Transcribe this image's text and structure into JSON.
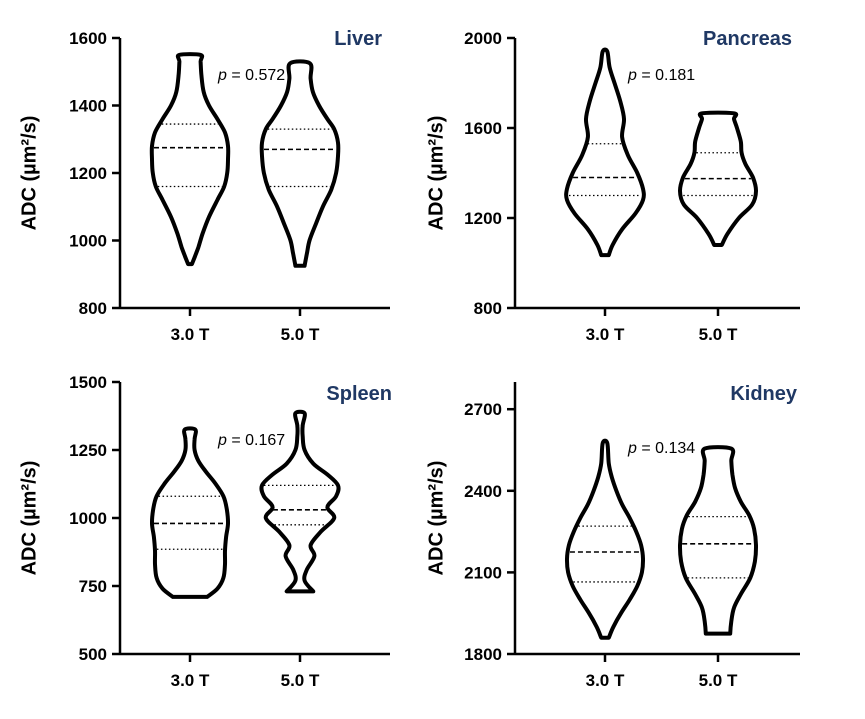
{
  "colors": {
    "title": "#1f3864",
    "ink": "#000000"
  },
  "chart_data": [
    {
      "type": "violin",
      "title": "Liver",
      "ylabel": "ADC (µm²/s)",
      "ylim": [
        800,
        1600
      ],
      "yticks": [
        800,
        1000,
        1200,
        1400,
        1600
      ],
      "categories": [
        "3.0 T",
        "5.0 T"
      ],
      "annotation": {
        "prefix": "p",
        "text": " = 0.572"
      },
      "series": [
        {
          "name": "3.0 T",
          "min": 930,
          "max": 1550,
          "q1": 1160,
          "median": 1275,
          "q3": 1345,
          "profile": [
            [
              930,
              0.05
            ],
            [
              950,
              0.12
            ],
            [
              980,
              0.22
            ],
            [
              1020,
              0.33
            ],
            [
              1070,
              0.5
            ],
            [
              1120,
              0.72
            ],
            [
              1160,
              0.9
            ],
            [
              1200,
              0.98
            ],
            [
              1240,
              1.0
            ],
            [
              1280,
              1.0
            ],
            [
              1320,
              0.92
            ],
            [
              1360,
              0.72
            ],
            [
              1400,
              0.5
            ],
            [
              1440,
              0.36
            ],
            [
              1490,
              0.3
            ],
            [
              1530,
              0.28
            ],
            [
              1550,
              0.28
            ]
          ]
        },
        {
          "name": "5.0 T",
          "min": 925,
          "max": 1525,
          "q1": 1160,
          "median": 1270,
          "q3": 1330,
          "profile": [
            [
              925,
              0.12
            ],
            [
              960,
              0.18
            ],
            [
              1000,
              0.25
            ],
            [
              1050,
              0.42
            ],
            [
              1100,
              0.6
            ],
            [
              1150,
              0.82
            ],
            [
              1200,
              0.95
            ],
            [
              1250,
              1.0
            ],
            [
              1290,
              1.0
            ],
            [
              1330,
              0.9
            ],
            [
              1360,
              0.72
            ],
            [
              1400,
              0.5
            ],
            [
              1440,
              0.34
            ],
            [
              1480,
              0.28
            ],
            [
              1525,
              0.26
            ]
          ]
        }
      ]
    },
    {
      "type": "violin",
      "title": "Pancreas",
      "ylabel": "ADC (µm²/s)",
      "ylim": [
        800,
        2000
      ],
      "yticks": [
        800,
        1200,
        1600,
        2000
      ],
      "categories": [
        "3.0 T",
        "5.0 T"
      ],
      "annotation": {
        "prefix": "p",
        "text": " = 0.181"
      },
      "series": [
        {
          "name": "3.0 T",
          "min": 1035,
          "max": 1940,
          "q1": 1300,
          "median": 1380,
          "q3": 1530,
          "profile": [
            [
              1035,
              0.1
            ],
            [
              1080,
              0.2
            ],
            [
              1150,
              0.45
            ],
            [
              1220,
              0.8
            ],
            [
              1280,
              1.0
            ],
            [
              1330,
              1.0
            ],
            [
              1400,
              0.85
            ],
            [
              1480,
              0.6
            ],
            [
              1560,
              0.45
            ],
            [
              1640,
              0.5
            ],
            [
              1720,
              0.4
            ],
            [
              1800,
              0.25
            ],
            [
              1870,
              0.12
            ],
            [
              1940,
              0.06
            ]
          ]
        },
        {
          "name": "5.0 T",
          "min": 1080,
          "max": 1665,
          "q1": 1300,
          "median": 1375,
          "q3": 1490,
          "profile": [
            [
              1080,
              0.1
            ],
            [
              1130,
              0.25
            ],
            [
              1200,
              0.55
            ],
            [
              1260,
              0.9
            ],
            [
              1320,
              1.0
            ],
            [
              1380,
              0.92
            ],
            [
              1440,
              0.72
            ],
            [
              1490,
              0.62
            ],
            [
              1540,
              0.6
            ],
            [
              1600,
              0.5
            ],
            [
              1640,
              0.42
            ],
            [
              1665,
              0.42
            ]
          ]
        }
      ]
    },
    {
      "type": "violin",
      "title": "Spleen",
      "ylabel": "ADC (µm²/s)",
      "ylim": [
        500,
        1500
      ],
      "yticks": [
        500,
        750,
        1000,
        1250,
        1500
      ],
      "categories": [
        "3.0 T",
        "5.0 T"
      ],
      "annotation": {
        "prefix": "p",
        "text": " = 0.167"
      },
      "series": [
        {
          "name": "3.0 T",
          "min": 710,
          "max": 1325,
          "q1": 885,
          "median": 980,
          "q3": 1080,
          "profile": [
            [
              710,
              0.45
            ],
            [
              740,
              0.72
            ],
            [
              780,
              0.88
            ],
            [
              830,
              0.92
            ],
            [
              880,
              0.92
            ],
            [
              930,
              0.95
            ],
            [
              980,
              1.0
            ],
            [
              1030,
              0.97
            ],
            [
              1080,
              0.88
            ],
            [
              1130,
              0.65
            ],
            [
              1170,
              0.42
            ],
            [
              1210,
              0.22
            ],
            [
              1250,
              0.12
            ],
            [
              1290,
              0.12
            ],
            [
              1325,
              0.14
            ]
          ]
        },
        {
          "name": "5.0 T",
          "min": 730,
          "max": 1385,
          "q1": 975,
          "median": 1030,
          "q3": 1120,
          "profile": [
            [
              730,
              0.35
            ],
            [
              770,
              0.12
            ],
            [
              810,
              0.18
            ],
            [
              860,
              0.38
            ],
            [
              900,
              0.28
            ],
            [
              950,
              0.55
            ],
            [
              1000,
              0.9
            ],
            [
              1040,
              0.72
            ],
            [
              1080,
              0.95
            ],
            [
              1120,
              1.0
            ],
            [
              1160,
              0.72
            ],
            [
              1200,
              0.35
            ],
            [
              1250,
              0.12
            ],
            [
              1300,
              0.07
            ],
            [
              1340,
              0.07
            ],
            [
              1385,
              0.12
            ]
          ]
        }
      ]
    },
    {
      "type": "violin",
      "title": "Kidney",
      "ylabel": "ADC (µm²/s)",
      "ylim": [
        1800,
        2800
      ],
      "yticks": [
        1800,
        2100,
        2400,
        2700
      ],
      "categories": [
        "3.0 T",
        "5.0 T"
      ],
      "annotation": {
        "prefix": "p",
        "text": " = 0.134"
      },
      "series": [
        {
          "name": "3.0 T",
          "min": 1860,
          "max": 2575,
          "q1": 2065,
          "median": 2175,
          "q3": 2270,
          "profile": [
            [
              1860,
              0.1
            ],
            [
              1900,
              0.22
            ],
            [
              1950,
              0.42
            ],
            [
              2000,
              0.65
            ],
            [
              2050,
              0.85
            ],
            [
              2100,
              0.97
            ],
            [
              2150,
              1.0
            ],
            [
              2200,
              0.95
            ],
            [
              2250,
              0.82
            ],
            [
              2300,
              0.65
            ],
            [
              2350,
              0.45
            ],
            [
              2400,
              0.3
            ],
            [
              2450,
              0.18
            ],
            [
              2500,
              0.1
            ],
            [
              2575,
              0.06
            ]
          ]
        },
        {
          "name": "5.0 T",
          "min": 1875,
          "max": 2555,
          "q1": 2080,
          "median": 2205,
          "q3": 2305,
          "profile": [
            [
              1875,
              0.32
            ],
            [
              1920,
              0.35
            ],
            [
              1970,
              0.42
            ],
            [
              2020,
              0.6
            ],
            [
              2080,
              0.85
            ],
            [
              2140,
              0.97
            ],
            [
              2200,
              1.0
            ],
            [
              2260,
              0.95
            ],
            [
              2310,
              0.82
            ],
            [
              2360,
              0.6
            ],
            [
              2410,
              0.45
            ],
            [
              2460,
              0.38
            ],
            [
              2510,
              0.35
            ],
            [
              2555,
              0.35
            ]
          ]
        }
      ]
    }
  ]
}
